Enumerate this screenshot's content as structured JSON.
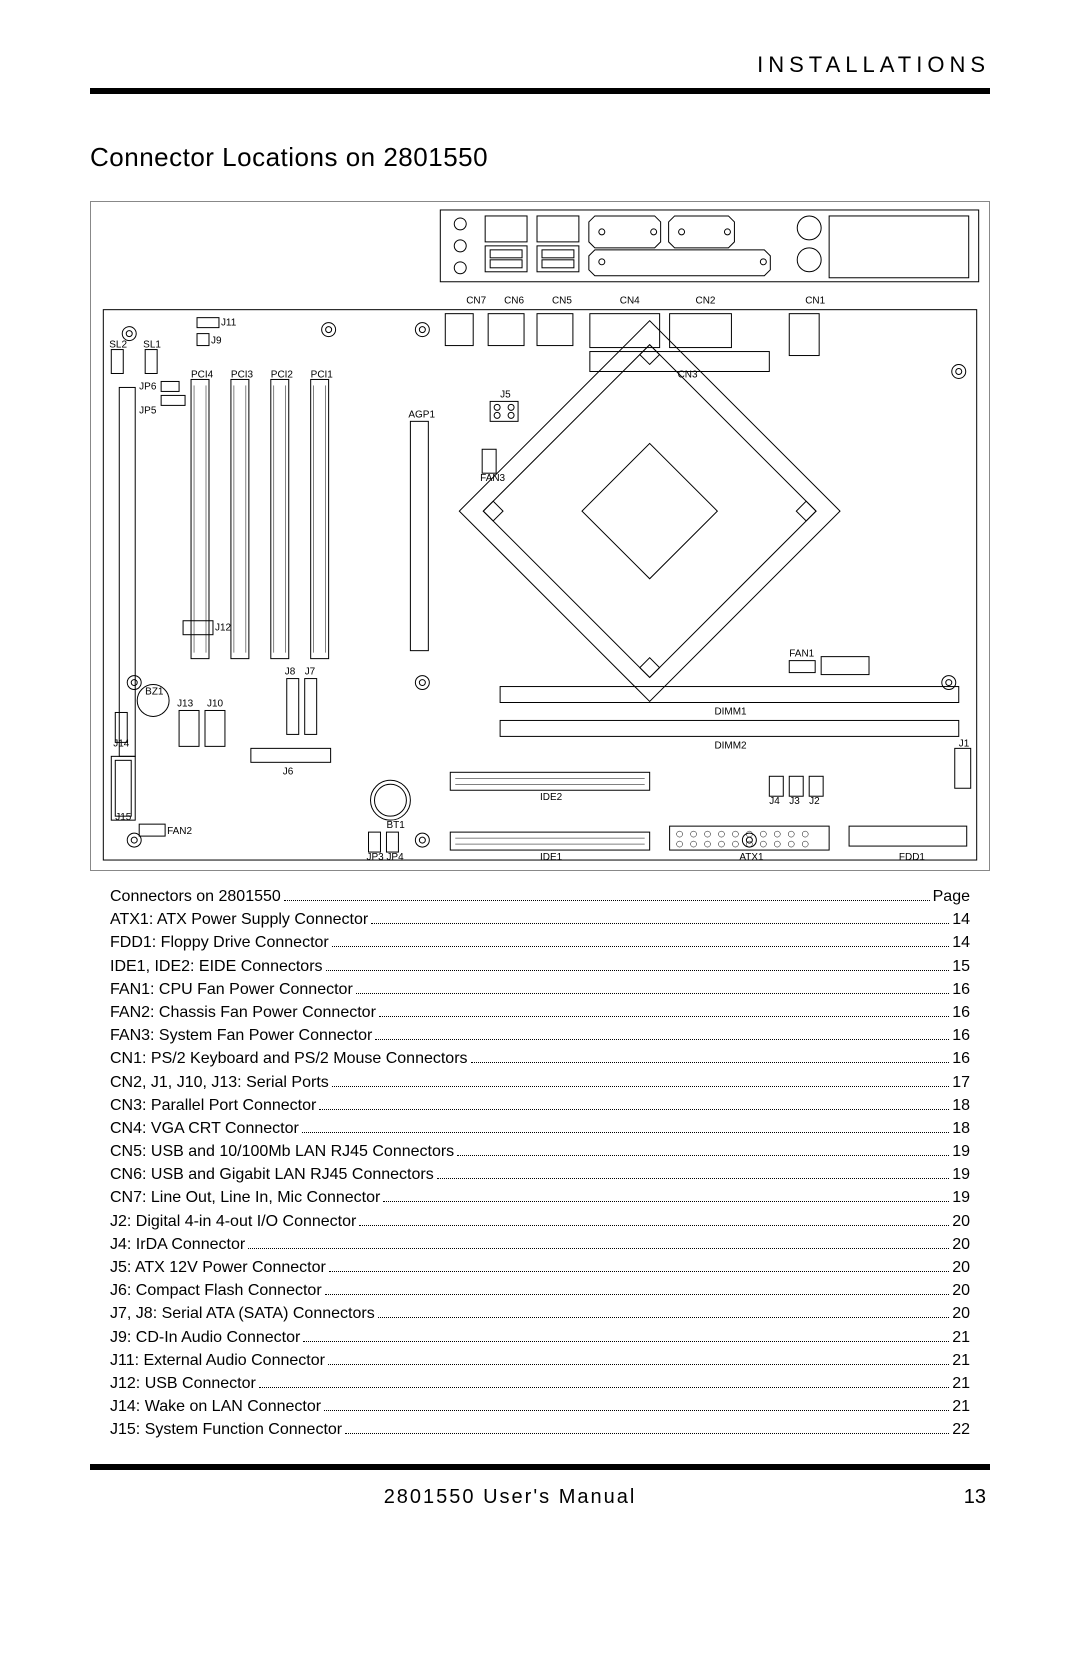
{
  "header": {
    "section": "INSTALLATIONS"
  },
  "title": "Connector Locations on 2801550",
  "diagram": {
    "type": "schematic",
    "background_color": "#ffffff",
    "stroke_color": "#000000",
    "top_panel_labels": [
      "CN7",
      "CN6",
      "CN5",
      "CN4",
      "CN2",
      "CN1"
    ],
    "board_labels": [
      "SL2",
      "SL1",
      "J11",
      "J9",
      "JP6",
      "JP5",
      "PCI4",
      "PCI3",
      "PCI2",
      "PCI1",
      "AGP1",
      "FAN3",
      "J5",
      "J12",
      "BZ1",
      "J14",
      "J13",
      "J10",
      "J8",
      "J7",
      "J6",
      "FAN1",
      "DIMM1",
      "DIMM2",
      "J15",
      "FAN2",
      "BT1",
      "JP4",
      "JP3",
      "IDE2",
      "IDE1",
      "ATX1",
      "J4",
      "J3",
      "J2",
      "FDD1",
      "J1",
      "CN3"
    ]
  },
  "toc": {
    "header": {
      "label": "Connectors on 2801550",
      "page_label": "Page"
    },
    "rows": [
      {
        "label": "ATX1: ATX Power Supply Connector",
        "page": "14"
      },
      {
        "label": "FDD1: Floppy Drive Connector",
        "page": "14"
      },
      {
        "label": "IDE1, IDE2: EIDE Connectors",
        "page": "15"
      },
      {
        "label": "FAN1: CPU Fan Power Connector",
        "page": "16"
      },
      {
        "label": "FAN2: Chassis Fan Power Connector",
        "page": "16"
      },
      {
        "label": "FAN3: System Fan Power Connector",
        "page": "16"
      },
      {
        "label": "CN1: PS/2 Keyboard and PS/2 Mouse Connectors",
        "page": "16"
      },
      {
        "label": "CN2, J1, J10, J13: Serial Ports",
        "page": "17"
      },
      {
        "label": "CN3: Parallel Port Connector",
        "page": "18"
      },
      {
        "label": "CN4: VGA CRT Connector",
        "page": "18"
      },
      {
        "label": "CN5: USB and 10/100Mb LAN RJ45 Connectors",
        "page": "19"
      },
      {
        "label": "CN6: USB and Gigabit LAN RJ45 Connectors",
        "page": "19"
      },
      {
        "label": "CN7: Line Out, Line In, Mic Connector",
        "page": "19"
      },
      {
        "label": "J2: Digital 4-in 4-out I/O Connector",
        "page": "20"
      },
      {
        "label": "J4: IrDA Connector",
        "page": "20"
      },
      {
        "label": "J5: ATX 12V Power Connector",
        "page": "20"
      },
      {
        "label": "J6: Compact Flash Connector",
        "page": "20"
      },
      {
        "label": "J7, J8: Serial ATA (SATA) Connectors",
        "page": "20"
      },
      {
        "label": "J9: CD-In Audio Connector",
        "page": "21"
      },
      {
        "label": "J11: External Audio Connector",
        "page": "21"
      },
      {
        "label": "J12: USB Connector",
        "page": "21"
      },
      {
        "label": "J14: Wake on LAN Connector",
        "page": "21"
      },
      {
        "label": "J15: System Function Connector",
        "page": "22"
      }
    ]
  },
  "footer": {
    "manual": "2801550 User's Manual",
    "page_number": "13"
  },
  "style": {
    "page_bg": "#ffffff",
    "text_color": "#000000",
    "rule_color": "#000000",
    "body_fontsize": 16,
    "title_fontsize": 26,
    "header_fontsize": 22,
    "footer_fontsize": 20
  }
}
